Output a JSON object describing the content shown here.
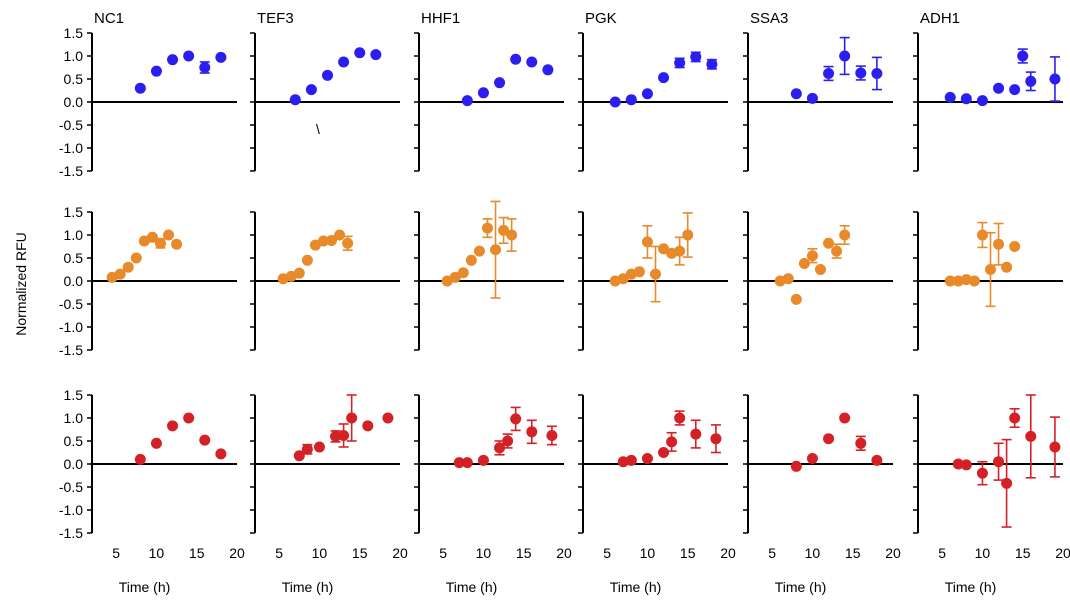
{
  "ylabel": "Normalized RFU",
  "xlabel": "Time (h)",
  "stray_mark": "\\",
  "colors": {
    "blue": "#2b1ef0",
    "orange": "#e8892a",
    "red": "#d42126"
  },
  "chart_data": {
    "type": "scatter",
    "grid": false,
    "genes": [
      "NC1",
      "TEF3",
      "HHF1",
      "PGK",
      "SSA3",
      "ADH1"
    ],
    "rows": [
      "blue",
      "orange",
      "red"
    ],
    "xlim": [
      2,
      20
    ],
    "ylim": [
      -1.5,
      1.5
    ],
    "xticks": [
      5,
      10,
      15,
      20
    ],
    "yticks": [
      1.5,
      1.0,
      0.5,
      0.0,
      -0.5,
      -1.0,
      -1.5
    ],
    "ytick_labels": [
      "1.5",
      "1.0",
      "0.5",
      "0.0",
      "-0.5",
      "-1.0",
      "-1.5"
    ],
    "panels": [
      [
        {
          "x": [
            8,
            10,
            12,
            14,
            16,
            18
          ],
          "y": [
            0.3,
            0.67,
            0.92,
            1.0,
            0.75,
            0.97
          ],
          "err": [
            0,
            0,
            0,
            0,
            0.12,
            0
          ]
        },
        {
          "x": [
            7,
            9,
            11,
            13,
            15,
            17
          ],
          "y": [
            0.05,
            0.27,
            0.58,
            0.87,
            1.07,
            1.03
          ],
          "err": [
            0,
            0,
            0,
            0,
            0,
            0
          ]
        },
        {
          "x": [
            8,
            10,
            12,
            14,
            16,
            18
          ],
          "y": [
            0.03,
            0.2,
            0.42,
            0.93,
            0.87,
            0.7
          ],
          "err": [
            0,
            0,
            0,
            0,
            0,
            0
          ]
        },
        {
          "x": [
            6,
            8,
            10,
            12,
            14,
            16,
            18
          ],
          "y": [
            0.0,
            0.05,
            0.18,
            0.53,
            0.85,
            0.98,
            0.82
          ],
          "err": [
            0,
            0,
            0,
            0,
            0.1,
            0.1,
            0.1
          ]
        },
        {
          "x": [
            8,
            10,
            12,
            14,
            16,
            18
          ],
          "y": [
            0.18,
            0.08,
            0.62,
            1.0,
            0.63,
            0.62
          ],
          "err": [
            0,
            0,
            0.15,
            0.4,
            0.15,
            0.35
          ]
        },
        {
          "x": [
            6,
            8,
            10,
            12,
            14,
            15,
            16,
            19
          ],
          "y": [
            0.1,
            0.07,
            0.03,
            0.3,
            0.27,
            1.0,
            0.45,
            0.5
          ],
          "err": [
            0,
            0,
            0,
            0,
            0,
            0.15,
            0.2,
            0.48
          ]
        }
      ],
      [
        {
          "x": [
            4.5,
            5.5,
            6.5,
            7.5,
            8.5,
            9.5,
            10.5,
            11.5,
            12.5
          ],
          "y": [
            0.08,
            0.15,
            0.3,
            0.5,
            0.87,
            0.95,
            0.82,
            1.0,
            0.8
          ],
          "err": [
            0,
            0,
            0,
            0,
            0,
            0,
            0.1,
            0,
            0
          ]
        },
        {
          "x": [
            5.5,
            6.5,
            7.5,
            8.5,
            9.5,
            10.5,
            11.5,
            12.5,
            13.5
          ],
          "y": [
            0.05,
            0.1,
            0.17,
            0.45,
            0.78,
            0.87,
            0.88,
            1.0,
            0.82
          ],
          "err": [
            0,
            0,
            0,
            0,
            0,
            0,
            0,
            0,
            0.15
          ]
        },
        {
          "x": [
            5.5,
            6.5,
            7.5,
            8.5,
            9.5,
            10.5,
            11.5,
            12.5,
            13.5
          ],
          "y": [
            0.0,
            0.08,
            0.18,
            0.45,
            0.65,
            1.15,
            0.68,
            1.1,
            1.0
          ],
          "err": [
            0,
            0,
            0,
            0,
            0,
            0.2,
            1.05,
            0.28,
            0.35
          ]
        },
        {
          "x": [
            6,
            7,
            8,
            9,
            10,
            11,
            12,
            13,
            14,
            15
          ],
          "y": [
            0.0,
            0.05,
            0.15,
            0.2,
            0.85,
            0.15,
            0.7,
            0.6,
            0.65,
            1.0
          ],
          "err": [
            0,
            0,
            0,
            0,
            0.35,
            0.6,
            0,
            0,
            0.3,
            0.48
          ]
        },
        {
          "x": [
            6,
            7,
            8,
            9,
            10,
            11,
            12,
            13,
            14
          ],
          "y": [
            0.0,
            0.05,
            -0.4,
            0.38,
            0.55,
            0.25,
            0.82,
            0.65,
            1.0
          ],
          "err": [
            0,
            0,
            0,
            0,
            0.15,
            0,
            0,
            0.15,
            0.2
          ]
        },
        {
          "x": [
            6,
            7,
            8,
            9,
            10,
            11,
            12,
            13,
            14
          ],
          "y": [
            0.0,
            0.0,
            0.03,
            0.0,
            1.0,
            0.25,
            0.8,
            0.3,
            0.75
          ],
          "err": [
            0,
            0,
            0,
            0,
            0.27,
            0.8,
            0.45,
            0,
            0
          ]
        }
      ],
      [
        {
          "x": [
            8,
            10,
            12,
            14,
            16,
            18
          ],
          "y": [
            0.1,
            0.45,
            0.83,
            1.0,
            0.52,
            0.22
          ],
          "err": [
            0,
            0,
            0,
            0,
            0,
            0
          ]
        },
        {
          "x": [
            7.5,
            8.5,
            10,
            12,
            13,
            14,
            16,
            18.5
          ],
          "y": [
            0.18,
            0.32,
            0.37,
            0.6,
            0.62,
            1.0,
            0.83,
            1.0
          ],
          "err": [
            0,
            0.1,
            0,
            0.12,
            0.25,
            0.5,
            0,
            0
          ]
        },
        {
          "x": [
            7,
            8,
            10,
            12,
            13,
            14,
            16,
            18.5
          ],
          "y": [
            0.03,
            0.03,
            0.08,
            0.35,
            0.5,
            0.98,
            0.7,
            0.62
          ],
          "err": [
            0,
            0,
            0,
            0.15,
            0.15,
            0.25,
            0.25,
            0.2
          ]
        },
        {
          "x": [
            7,
            8,
            10,
            12,
            13,
            14,
            16,
            18.5
          ],
          "y": [
            0.05,
            0.08,
            0.12,
            0.25,
            0.48,
            1.0,
            0.65,
            0.55
          ],
          "err": [
            0,
            0,
            0,
            0,
            0.2,
            0.15,
            0.3,
            0.3
          ]
        },
        {
          "x": [
            8,
            10,
            12,
            14,
            16,
            18
          ],
          "y": [
            -0.05,
            0.12,
            0.55,
            1.0,
            0.45,
            0.08
          ],
          "err": [
            0,
            0,
            0,
            0,
            0.15,
            0
          ]
        },
        {
          "x": [
            7,
            8,
            10,
            12,
            13,
            14,
            16,
            19
          ],
          "y": [
            0.0,
            -0.02,
            -0.2,
            0.05,
            -0.42,
            1.0,
            0.6,
            0.37
          ],
          "err": [
            0,
            0,
            0.25,
            0.4,
            0.95,
            0.2,
            0.9,
            0.65
          ]
        }
      ]
    ]
  }
}
